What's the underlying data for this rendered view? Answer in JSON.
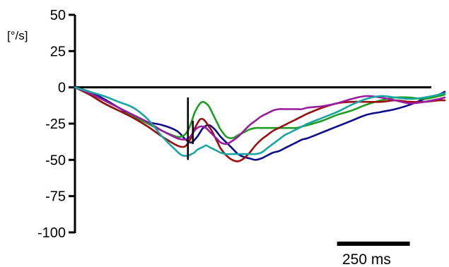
{
  "chart_data": {
    "type": "line",
    "title": "",
    "xlabel": "",
    "ylabel": "[°/s]",
    "ylim": [
      -100,
      50
    ],
    "xlim": [
      0,
      1270
    ],
    "yticks": [
      50,
      25,
      0,
      -25,
      -50,
      -75,
      -100
    ],
    "ytick_labels": [
      "50",
      "25",
      "0",
      "-25",
      "-50",
      "-75",
      "-100"
    ],
    "grid": false,
    "legend": "none",
    "zero_line": true,
    "scale_bar": {
      "length_ms": 250,
      "label": "250 ms",
      "x_start": 900
    },
    "markers": [
      {
        "x": 388,
        "y_from": -50,
        "y_to": -7,
        "color": "#000000"
      },
      {
        "x": 405,
        "y_from": -39,
        "y_to": -23,
        "color": "#000000"
      }
    ],
    "series": [
      {
        "color": "#0d0d8c",
        "x": [
          0,
          50,
          100,
          150,
          200,
          250,
          300,
          350,
          380,
          400,
          420,
          440,
          460,
          480,
          500,
          520,
          540,
          560,
          580,
          600,
          620,
          640,
          660,
          680,
          700,
          720,
          740,
          760,
          780,
          800,
          850,
          900,
          950,
          1000,
          1050,
          1100,
          1150,
          1200,
          1250,
          1270
        ],
        "y": [
          0,
          -3,
          -8,
          -14,
          -20,
          -24,
          -26,
          -30,
          -36,
          -38,
          -34,
          -28,
          -26,
          -29,
          -34,
          -38,
          -42,
          -46,
          -48,
          -49,
          -50,
          -49,
          -47,
          -45,
          -44,
          -42,
          -40,
          -38,
          -36,
          -35,
          -31,
          -27,
          -23,
          -19,
          -17,
          -15,
          -12,
          -8,
          -5,
          -3
        ]
      },
      {
        "color": "#1e9e1e",
        "x": [
          0,
          50,
          100,
          150,
          200,
          250,
          300,
          350,
          375,
          390,
          400,
          410,
          420,
          430,
          440,
          450,
          460,
          470,
          480,
          490,
          500,
          520,
          540,
          560,
          580,
          600,
          620,
          640,
          660,
          680,
          700,
          720,
          740,
          760,
          780,
          800,
          850,
          900,
          950,
          1000,
          1050,
          1100,
          1150,
          1200,
          1250,
          1270
        ],
        "y": [
          0,
          -5,
          -11,
          -16,
          -20,
          -25,
          -30,
          -34,
          -33,
          -29,
          -24,
          -18,
          -14,
          -11,
          -10,
          -11,
          -13,
          -17,
          -21,
          -25,
          -29,
          -34,
          -35,
          -33,
          -31,
          -29,
          -28,
          -28,
          -28,
          -28,
          -28,
          -28,
          -28,
          -28,
          -27,
          -26,
          -23,
          -19,
          -16,
          -12,
          -9,
          -7,
          -7,
          -8,
          -6,
          -5
        ]
      },
      {
        "color": "#9b0e0e",
        "x": [
          0,
          50,
          100,
          150,
          200,
          250,
          300,
          350,
          375,
          390,
          400,
          410,
          420,
          430,
          440,
          450,
          460,
          470,
          480,
          490,
          500,
          520,
          540,
          560,
          580,
          600,
          620,
          640,
          660,
          680,
          700,
          720,
          740,
          760,
          780,
          800,
          850,
          900,
          950,
          1000,
          1050,
          1100,
          1150,
          1200,
          1250,
          1270
        ],
        "y": [
          0,
          -5,
          -11,
          -16,
          -21,
          -27,
          -34,
          -40,
          -41,
          -38,
          -34,
          -29,
          -25,
          -22,
          -22,
          -24,
          -27,
          -30,
          -34,
          -38,
          -42,
          -47,
          -50,
          -51,
          -49,
          -45,
          -40,
          -36,
          -33,
          -30,
          -28,
          -26,
          -24,
          -22,
          -20,
          -18,
          -14,
          -11,
          -10,
          -10,
          -10,
          -9,
          -10,
          -10,
          -9,
          -9
        ]
      },
      {
        "color": "#9b1ba0",
        "x": [
          0,
          50,
          100,
          150,
          200,
          250,
          300,
          350,
          375,
          390,
          400,
          410,
          420,
          430,
          440,
          450,
          460,
          470,
          480,
          490,
          500,
          520,
          540,
          560,
          580,
          600,
          620,
          640,
          660,
          680,
          700,
          720,
          740,
          760,
          780,
          800,
          850,
          900,
          950,
          1000,
          1050,
          1100,
          1150,
          1200,
          1250,
          1270
        ],
        "y": [
          0,
          -4,
          -9,
          -14,
          -19,
          -24,
          -30,
          -35,
          -36,
          -35,
          -33,
          -30,
          -28,
          -27,
          -27,
          -28,
          -30,
          -32,
          -34,
          -36,
          -38,
          -39,
          -37,
          -34,
          -30,
          -26,
          -23,
          -20,
          -18,
          -16,
          -15,
          -15,
          -15,
          -15,
          -15,
          -14,
          -13,
          -11,
          -8,
          -6,
          -7,
          -9,
          -11,
          -10,
          -8,
          -7
        ]
      },
      {
        "color": "#1aa5a5",
        "x": [
          0,
          50,
          100,
          150,
          200,
          250,
          300,
          350,
          370,
          390,
          400,
          410,
          420,
          430,
          440,
          450,
          460,
          470,
          480,
          490,
          500,
          520,
          540,
          560,
          580,
          600,
          620,
          640,
          660,
          680,
          700,
          720,
          740,
          760,
          780,
          800,
          850,
          900,
          950,
          1000,
          1050,
          1100,
          1150,
          1200,
          1250,
          1270
        ],
        "y": [
          0,
          -3,
          -6,
          -10,
          -14,
          -22,
          -34,
          -44,
          -47,
          -47,
          -46,
          -45,
          -43,
          -42,
          -41,
          -40,
          -41,
          -42,
          -43,
          -44,
          -45,
          -46,
          -46,
          -46,
          -46,
          -46,
          -46,
          -45,
          -42,
          -39,
          -36,
          -33,
          -31,
          -29,
          -27,
          -25,
          -21,
          -17,
          -12,
          -8,
          -6,
          -7,
          -8,
          -7,
          -5,
          -4
        ]
      }
    ]
  }
}
